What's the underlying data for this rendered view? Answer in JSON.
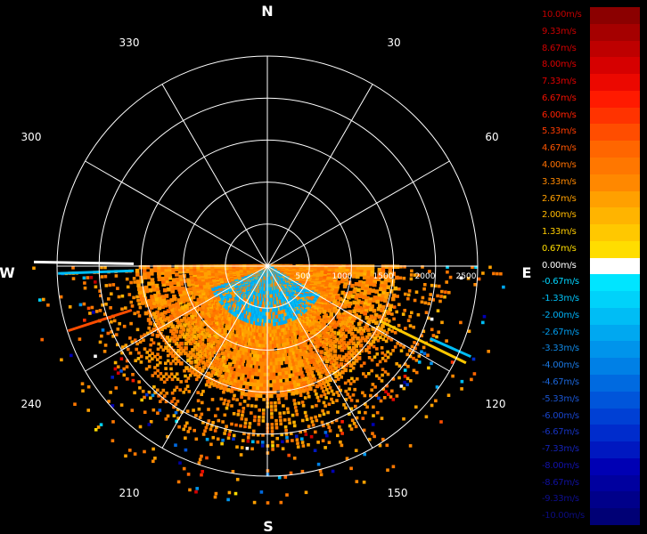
{
  "chart_data": {
    "type": "polar_ppi_velocity",
    "cardinals": {
      "n": "N",
      "e": "E",
      "s": "S",
      "w": "W"
    },
    "angle_labels": [
      "30",
      "60",
      "120",
      "150",
      "210",
      "240",
      "300",
      "330"
    ],
    "range_labels": [
      "500",
      "1000",
      "1500",
      "2000",
      "2500"
    ],
    "range_rings": [
      500,
      1000,
      1500,
      2000,
      2500
    ],
    "range_max": 2500,
    "spokes_deg": 30,
    "grid": true,
    "data_sector_deg": [
      90,
      270
    ],
    "dominant_velocity_ms": 3.33,
    "near_field_velocity_ms": -2.0,
    "legend": {
      "placement": "right",
      "labels": [
        "10.00m/s",
        "9.33m/s",
        "8.67m/s",
        "8.00m/s",
        "7.33m/s",
        "6.67m/s",
        "6.00m/s",
        "5.33m/s",
        "4.67m/s",
        "4.00m/s",
        "3.33m/s",
        "2.67m/s",
        "2.00m/s",
        "1.33m/s",
        "0.67m/s",
        "0.00m/s",
        "-0.67m/s",
        "-1.33m/s",
        "-2.00m/s",
        "-2.67m/s",
        "-3.33m/s",
        "-4.00m/s",
        "-4.67m/s",
        "-5.33m/s",
        "-6.00m/s",
        "-6.67m/s",
        "-7.33m/s",
        "-8.00m/s",
        "-8.67m/s",
        "-9.33m/s",
        "-10.00m/s"
      ],
      "colors": [
        "#8b0000",
        "#a50000",
        "#be0000",
        "#d60000",
        "#ec0800",
        "#ff1a00",
        "#ff3300",
        "#ff4d00",
        "#ff6600",
        "#ff7700",
        "#ff8800",
        "#ffa000",
        "#ffb400",
        "#ffc800",
        "#ffdd00",
        "#ffffff",
        "#00e5ff",
        "#00d2fa",
        "#00bdf5",
        "#00a8f0",
        "#0094eb",
        "#0080e6",
        "#006ae0",
        "#0055da",
        "#0040d4",
        "#002ccc",
        "#0018c0",
        "#0000b4",
        "#00009f",
        "#00008a",
        "#000075"
      ],
      "label_colors": [
        "#c00000",
        "#c80000",
        "#d00000",
        "#d80000",
        "#e00000",
        "#f01000",
        "#ff2000",
        "#ff3b00",
        "#ff5500",
        "#ff7000",
        "#ff8800",
        "#ffa000",
        "#ffb800",
        "#ffcc00",
        "#ffdd00",
        "#ffffff",
        "#00d5ff",
        "#00c2f8",
        "#00aef2",
        "#009bec",
        "#1089e6",
        "#1a77e0",
        "#1b66da",
        "#1a55d2",
        "#1844ca",
        "#1633c0",
        "#1422b6",
        "#1212aa",
        "#10109e",
        "#0e0e90",
        "#0c0c80"
      ]
    }
  }
}
